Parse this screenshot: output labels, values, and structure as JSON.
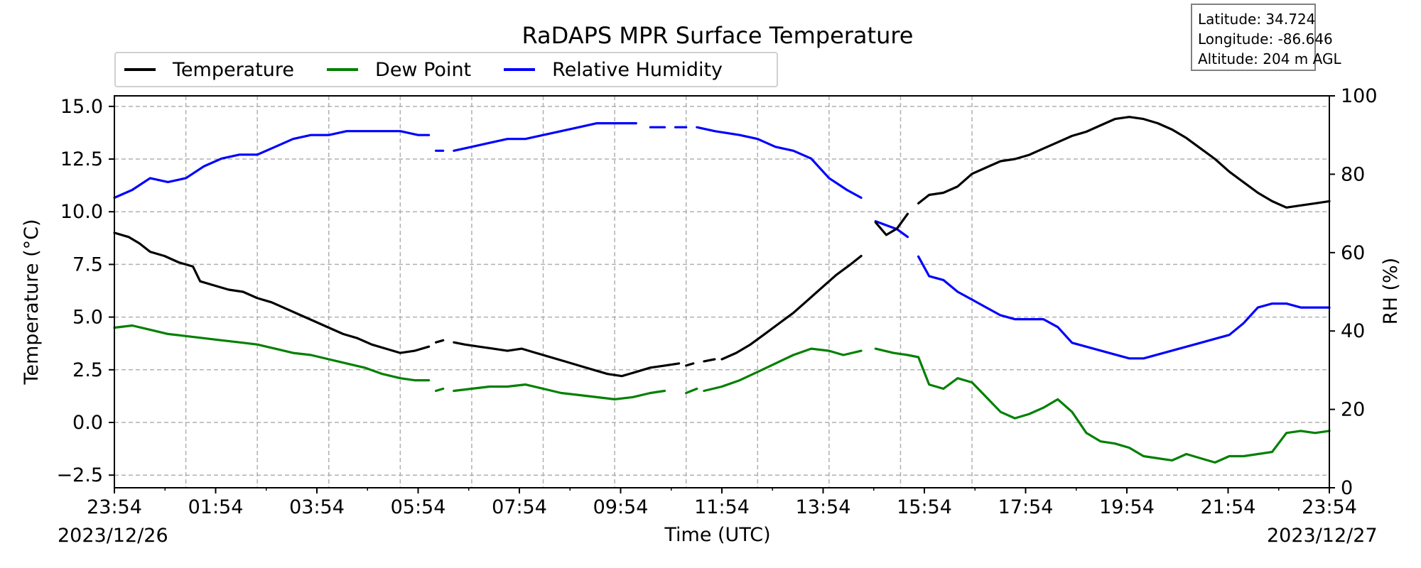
{
  "chart_data": {
    "type": "line",
    "title": "RaDAPS MPR Surface Temperature",
    "xlabel": "Time (UTC)",
    "ylabel": "Temperature ($^\\circ$C)",
    "ylabel_display": "Temperature (°C)",
    "y2label": "RH (%)",
    "xlim": [
      "2023-12-26 23:54",
      "2023-12-27 23:54"
    ],
    "ylim": [
      -3.1,
      15.5
    ],
    "y2lim": [
      0,
      100
    ],
    "grid": true,
    "legend_position": "top-left",
    "x_ticks": [
      "23:54",
      "01:54",
      "03:54",
      "05:54",
      "07:54",
      "09:54",
      "11:54",
      "13:54",
      "15:54",
      "17:54",
      "19:54",
      "21:54",
      "23:54"
    ],
    "x_tick_hours": [
      0,
      2,
      4,
      6,
      8,
      10,
      12,
      14,
      16,
      18,
      20,
      22,
      24
    ],
    "date_labels": {
      "left": "2023/12/26",
      "right": "2023/12/27"
    },
    "y_ticks": [
      -2.5,
      0.0,
      2.5,
      5.0,
      7.5,
      10.0,
      12.5,
      15.0
    ],
    "y_tick_labels": [
      "−2.5",
      "0.0",
      "2.5",
      "5.0",
      "7.5",
      "10.0",
      "12.5",
      "15.0"
    ],
    "y2_ticks": [
      0,
      20,
      40,
      60,
      80,
      100
    ],
    "series": [
      {
        "name": "Temperature",
        "color": "#000000",
        "axis": "left",
        "segments": [
          [
            [
              0.0,
              9.0
            ],
            [
              0.4,
              8.8
            ],
            [
              0.7,
              8.5
            ],
            [
              1.0,
              8.1
            ],
            [
              1.4,
              7.9
            ],
            [
              1.8,
              7.6
            ],
            [
              2.2,
              7.4
            ],
            [
              2.4,
              6.7
            ],
            [
              2.8,
              6.5
            ],
            [
              3.2,
              6.3
            ],
            [
              3.6,
              6.2
            ],
            [
              4.0,
              5.9
            ],
            [
              4.4,
              5.7
            ],
            [
              4.8,
              5.4
            ],
            [
              5.2,
              5.1
            ],
            [
              5.6,
              4.8
            ],
            [
              6.0,
              4.5
            ],
            [
              6.4,
              4.2
            ],
            [
              6.8,
              4.0
            ],
            [
              7.2,
              3.7
            ],
            [
              7.6,
              3.5
            ],
            [
              8.0,
              3.3
            ],
            [
              8.4,
              3.4
            ],
            [
              8.8,
              3.6
            ]
          ],
          [
            [
              9.0,
              3.8
            ],
            [
              9.2,
              3.9
            ]
          ],
          [
            [
              9.5,
              3.8
            ],
            [
              9.8,
              3.7
            ],
            [
              10.2,
              3.6
            ],
            [
              10.6,
              3.5
            ],
            [
              11.0,
              3.4
            ],
            [
              11.4,
              3.5
            ],
            [
              11.8,
              3.3
            ],
            [
              12.2,
              3.1
            ],
            [
              12.6,
              2.9
            ],
            [
              13.0,
              2.7
            ],
            [
              13.4,
              2.5
            ],
            [
              13.8,
              2.3
            ],
            [
              14.2,
              2.2
            ],
            [
              14.6,
              2.4
            ],
            [
              15.0,
              2.6
            ],
            [
              15.4,
              2.7
            ],
            [
              15.8,
              2.8
            ]
          ],
          [
            [
              16.0,
              2.7
            ],
            [
              16.2,
              2.8
            ]
          ],
          [
            [
              16.5,
              2.9
            ],
            [
              16.8,
              3.0
            ]
          ],
          [
            [
              17.0,
              3.0
            ],
            [
              17.4,
              3.3
            ],
            [
              17.8,
              3.7
            ],
            [
              18.2,
              4.2
            ],
            [
              18.6,
              4.7
            ],
            [
              19.0,
              5.2
            ],
            [
              19.4,
              5.8
            ],
            [
              19.8,
              6.4
            ],
            [
              20.2,
              7.0
            ],
            [
              20.6,
              7.5
            ],
            [
              20.9,
              7.9
            ]
          ],
          [
            [
              21.3,
              9.5
            ],
            [
              21.6,
              8.9
            ],
            [
              21.9,
              9.2
            ],
            [
              22.2,
              9.9
            ]
          ],
          [
            [
              22.5,
              10.4
            ],
            [
              22.8,
              10.8
            ],
            [
              23.2,
              10.9
            ],
            [
              23.6,
              11.2
            ],
            [
              24.0,
              11.8
            ],
            [
              24.4,
              12.1
            ],
            [
              24.8,
              12.4
            ],
            [
              25.2,
              12.5
            ],
            [
              25.6,
              12.7
            ],
            [
              26.0,
              13.0
            ],
            [
              26.4,
              13.3
            ],
            [
              26.8,
              13.6
            ],
            [
              27.2,
              13.8
            ],
            [
              27.6,
              14.1
            ],
            [
              28.0,
              14.4
            ],
            [
              28.4,
              14.5
            ],
            [
              28.8,
              14.4
            ],
            [
              29.2,
              14.2
            ],
            [
              29.6,
              13.9
            ],
            [
              30.0,
              13.5
            ],
            [
              30.4,
              13.0
            ],
            [
              30.8,
              12.5
            ],
            [
              31.2,
              11.9
            ],
            [
              31.6,
              11.4
            ],
            [
              32.0,
              10.9
            ],
            [
              32.4,
              10.5
            ],
            [
              32.8,
              10.2
            ],
            [
              33.2,
              10.3
            ],
            [
              33.6,
              10.4
            ],
            [
              34.0,
              10.5
            ]
          ]
        ]
      },
      {
        "name": "Dew Point",
        "color": "#008000",
        "axis": "left",
        "segments": [
          [
            [
              0.0,
              4.5
            ],
            [
              0.5,
              4.6
            ],
            [
              1.0,
              4.4
            ],
            [
              1.5,
              4.2
            ],
            [
              2.0,
              4.1
            ],
            [
              2.5,
              4.0
            ],
            [
              3.0,
              3.9
            ],
            [
              3.5,
              3.8
            ],
            [
              4.0,
              3.7
            ],
            [
              4.5,
              3.5
            ],
            [
              5.0,
              3.3
            ],
            [
              5.5,
              3.2
            ],
            [
              6.0,
              3.0
            ],
            [
              6.5,
              2.8
            ],
            [
              7.0,
              2.6
            ],
            [
              7.5,
              2.3
            ],
            [
              8.0,
              2.1
            ],
            [
              8.4,
              2.0
            ],
            [
              8.8,
              2.0
            ]
          ],
          [
            [
              9.0,
              1.5
            ],
            [
              9.2,
              1.6
            ]
          ],
          [
            [
              9.5,
              1.5
            ],
            [
              10.0,
              1.6
            ],
            [
              10.5,
              1.7
            ],
            [
              11.0,
              1.7
            ],
            [
              11.5,
              1.8
            ],
            [
              12.0,
              1.6
            ],
            [
              12.5,
              1.4
            ],
            [
              13.0,
              1.3
            ],
            [
              13.5,
              1.2
            ],
            [
              14.0,
              1.1
            ],
            [
              14.5,
              1.2
            ],
            [
              15.0,
              1.4
            ],
            [
              15.4,
              1.5
            ]
          ],
          [
            [
              16.0,
              1.4
            ],
            [
              16.3,
              1.6
            ]
          ],
          [
            [
              16.5,
              1.5
            ],
            [
              17.0,
              1.7
            ],
            [
              17.5,
              2.0
            ],
            [
              18.0,
              2.4
            ],
            [
              18.5,
              2.8
            ],
            [
              19.0,
              3.2
            ],
            [
              19.5,
              3.5
            ],
            [
              20.0,
              3.4
            ],
            [
              20.4,
              3.2
            ],
            [
              20.9,
              3.4
            ]
          ],
          [
            [
              21.3,
              3.5
            ],
            [
              21.8,
              3.3
            ],
            [
              22.2,
              3.2
            ],
            [
              22.5,
              3.1
            ],
            [
              22.8,
              1.8
            ],
            [
              23.2,
              1.6
            ],
            [
              23.6,
              2.1
            ],
            [
              24.0,
              1.9
            ],
            [
              24.4,
              1.2
            ],
            [
              24.8,
              0.5
            ],
            [
              25.2,
              0.2
            ],
            [
              25.6,
              0.4
            ],
            [
              26.0,
              0.7
            ],
            [
              26.4,
              1.1
            ],
            [
              26.8,
              0.5
            ],
            [
              27.2,
              -0.5
            ],
            [
              27.6,
              -0.9
            ],
            [
              28.0,
              -1.0
            ],
            [
              28.4,
              -1.2
            ],
            [
              28.8,
              -1.6
            ],
            [
              29.2,
              -1.7
            ],
            [
              29.6,
              -1.8
            ],
            [
              30.0,
              -1.5
            ],
            [
              30.4,
              -1.7
            ],
            [
              30.8,
              -1.9
            ],
            [
              31.2,
              -1.6
            ],
            [
              31.6,
              -1.6
            ],
            [
              32.0,
              -1.5
            ],
            [
              32.4,
              -1.4
            ],
            [
              32.8,
              -0.5
            ],
            [
              33.2,
              -0.4
            ],
            [
              33.6,
              -0.5
            ],
            [
              34.0,
              -0.4
            ]
          ]
        ]
      },
      {
        "name": "Relative Humidity",
        "color": "#0000ff",
        "axis": "right",
        "segments": [
          [
            [
              0.0,
              74
            ],
            [
              0.5,
              76
            ],
            [
              1.0,
              79
            ],
            [
              1.5,
              78
            ],
            [
              2.0,
              79
            ],
            [
              2.5,
              82
            ],
            [
              3.0,
              84
            ],
            [
              3.5,
              85
            ],
            [
              4.0,
              85
            ],
            [
              4.5,
              87
            ],
            [
              5.0,
              89
            ],
            [
              5.5,
              90
            ],
            [
              6.0,
              90
            ],
            [
              6.5,
              91
            ],
            [
              7.0,
              91
            ],
            [
              7.5,
              91
            ],
            [
              8.0,
              91
            ],
            [
              8.5,
              90
            ],
            [
              8.8,
              90
            ]
          ],
          [
            [
              9.0,
              86
            ],
            [
              9.2,
              86
            ]
          ],
          [
            [
              9.5,
              86
            ],
            [
              10.0,
              87
            ],
            [
              10.5,
              88
            ],
            [
              11.0,
              89
            ],
            [
              11.5,
              89
            ],
            [
              12.0,
              90
            ],
            [
              12.5,
              91
            ],
            [
              13.0,
              92
            ],
            [
              13.5,
              93
            ],
            [
              14.0,
              93
            ],
            [
              14.6,
              93
            ]
          ],
          [
            [
              15.0,
              92
            ],
            [
              15.4,
              92
            ]
          ],
          [
            [
              15.7,
              92
            ],
            [
              16.0,
              92
            ]
          ],
          [
            [
              16.3,
              92
            ],
            [
              16.8,
              91
            ],
            [
              17.5,
              90
            ],
            [
              18.0,
              89
            ],
            [
              18.5,
              87
            ],
            [
              19.0,
              86
            ],
            [
              19.5,
              84
            ],
            [
              20.0,
              79
            ],
            [
              20.5,
              76
            ],
            [
              20.9,
              74
            ]
          ],
          [
            [
              21.3,
              68
            ],
            [
              21.6,
              67
            ],
            [
              21.9,
              66
            ],
            [
              22.2,
              64
            ]
          ],
          [
            [
              22.5,
              59
            ],
            [
              22.8,
              54
            ],
            [
              23.2,
              53
            ],
            [
              23.6,
              50
            ],
            [
              24.0,
              48
            ],
            [
              24.4,
              46
            ],
            [
              24.8,
              44
            ],
            [
              25.2,
              43
            ],
            [
              25.6,
              43
            ],
            [
              26.0,
              43
            ],
            [
              26.4,
              41
            ],
            [
              26.8,
              37
            ],
            [
              27.2,
              36
            ],
            [
              27.6,
              35
            ],
            [
              28.0,
              34
            ],
            [
              28.4,
              33
            ],
            [
              28.8,
              33
            ],
            [
              29.2,
              34
            ],
            [
              29.6,
              35
            ],
            [
              30.0,
              36
            ],
            [
              30.4,
              37
            ],
            [
              30.8,
              38
            ],
            [
              31.2,
              39
            ],
            [
              31.6,
              42
            ],
            [
              32.0,
              46
            ],
            [
              32.4,
              47
            ],
            [
              32.8,
              47
            ],
            [
              33.2,
              46
            ],
            [
              33.6,
              46
            ],
            [
              34.0,
              46
            ]
          ]
        ]
      }
    ]
  },
  "legend": {
    "items": [
      {
        "label": "Temperature",
        "color": "#000000"
      },
      {
        "label": "Dew Point",
        "color": "#008000"
      },
      {
        "label": "Relative Humidity",
        "color": "#0000ff"
      }
    ]
  },
  "info": {
    "latitude": "Latitude: 34.724",
    "longitude": "Longitude: -86.646",
    "altitude": "Altitude: 204 m AGL"
  }
}
